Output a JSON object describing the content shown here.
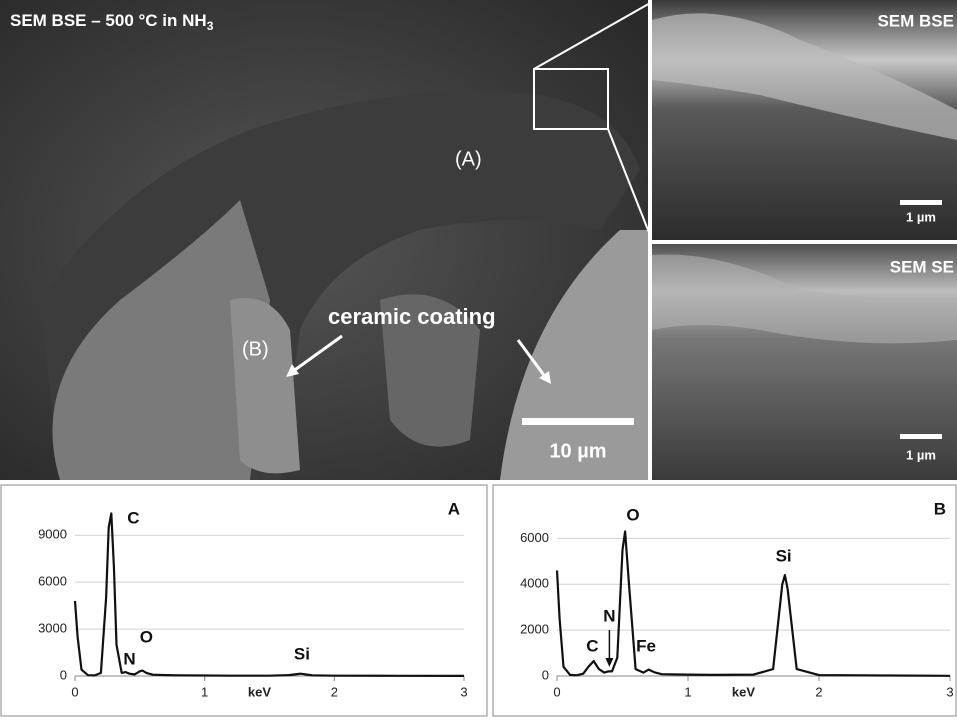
{
  "images": {
    "main": {
      "title": "SEM BSE – 500 °C in NH",
      "title_subscript": "3",
      "label_a": "(A)",
      "label_b": "(B)",
      "annotation": "ceramic coating",
      "scale": "10 µm"
    },
    "top_right": {
      "title": "SEM BSE",
      "scale": "1 µm"
    },
    "bottom_right": {
      "title": "SEM SE",
      "scale": "1 µm"
    }
  },
  "chart_data": [
    {
      "type": "line",
      "panel_label": "A",
      "x_label": "keV",
      "x": [
        0,
        0.02,
        0.05,
        0.1,
        0.15,
        0.2,
        0.24,
        0.26,
        0.28,
        0.3,
        0.32,
        0.36,
        0.39,
        0.42,
        0.46,
        0.5,
        0.52,
        0.55,
        0.6,
        0.7,
        0.8,
        1.0,
        1.2,
        1.5,
        1.65,
        1.72,
        1.74,
        1.76,
        1.83,
        2.0,
        2.5,
        3.0
      ],
      "values": [
        4800,
        2500,
        400,
        50,
        30,
        200,
        5000,
        9500,
        10400,
        7000,
        2000,
        200,
        250,
        150,
        100,
        300,
        350,
        200,
        80,
        60,
        40,
        30,
        20,
        20,
        60,
        130,
        150,
        120,
        40,
        20,
        10,
        5
      ],
      "color": "#111111",
      "xlim": [
        0,
        3
      ],
      "xticks": [
        0,
        1,
        2,
        3
      ],
      "ylim": [
        0,
        11000
      ],
      "yticks": [
        0,
        3000,
        6000,
        9000
      ],
      "grid": true,
      "annotations": [
        "C",
        "N",
        "O",
        "Si"
      ]
    },
    {
      "type": "line",
      "panel_label": "B",
      "x_label": "keV",
      "x": [
        0,
        0.02,
        0.05,
        0.1,
        0.15,
        0.2,
        0.24,
        0.28,
        0.32,
        0.36,
        0.39,
        0.42,
        0.46,
        0.5,
        0.52,
        0.55,
        0.6,
        0.66,
        0.7,
        0.75,
        0.8,
        1.0,
        1.2,
        1.5,
        1.65,
        1.72,
        1.74,
        1.76,
        1.83,
        2.0,
        2.5,
        3.0
      ],
      "values": [
        4600,
        2500,
        400,
        50,
        30,
        100,
        400,
        650,
        300,
        150,
        200,
        200,
        800,
        5500,
        6300,
        4000,
        300,
        150,
        280,
        150,
        80,
        60,
        50,
        60,
        300,
        4000,
        4400,
        3800,
        300,
        40,
        20,
        10
      ],
      "color": "#111111",
      "xlim": [
        0,
        3
      ],
      "xticks": [
        0,
        1,
        2,
        3
      ],
      "ylim": [
        0,
        7500
      ],
      "yticks": [
        0,
        2000,
        4000,
        6000
      ],
      "grid": true,
      "annotations": [
        "O",
        "Si",
        "C",
        "N",
        "Fe"
      ]
    }
  ]
}
